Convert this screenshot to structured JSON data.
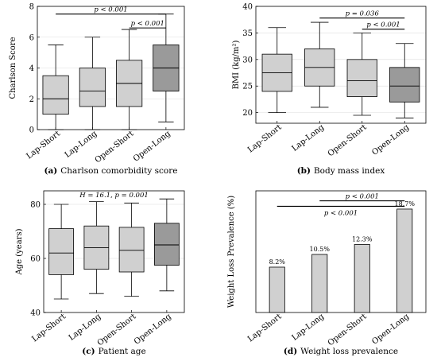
{
  "chart_data": [
    {
      "id": "a",
      "type": "box",
      "caption_letter": "(a)",
      "caption_text": "Charlson comorbidity score",
      "ylabel": "Charlson Score",
      "ylim": [
        0,
        8
      ],
      "yticks": [
        0,
        2,
        4,
        6,
        8
      ],
      "categories": [
        "Lap-Short",
        "Lap-Long",
        "Open-Short",
        "Open-Long"
      ],
      "boxes": [
        {
          "min": 0,
          "q1": 1,
          "median": 2,
          "q3": 3.5,
          "max": 5.5,
          "color": "#d0d0d0"
        },
        {
          "min": 0,
          "q1": 1.5,
          "median": 2.5,
          "q3": 4,
          "max": 6,
          "color": "#d0d0d0"
        },
        {
          "min": 0,
          "q1": 1.5,
          "median": 3,
          "q3": 4.5,
          "max": 6.5,
          "color": "#d0d0d0"
        },
        {
          "min": 0.5,
          "q1": 2.5,
          "median": 4,
          "q3": 5.5,
          "max": 7.5,
          "color": "#9a9a9a"
        }
      ],
      "brackets": [
        {
          "from": 0,
          "to": 3,
          "y": 7.5,
          "label": "p < 0.001"
        },
        {
          "from": 2,
          "to": 3,
          "y": 6.6,
          "label": "p < 0.001"
        }
      ]
    },
    {
      "id": "b",
      "type": "box",
      "caption_letter": "(b)",
      "caption_text": "Body mass index",
      "ylabel": "BMI (kg/m²)",
      "ylim": [
        18,
        40
      ],
      "yticks": [
        20,
        25,
        30,
        35,
        40
      ],
      "categories": [
        "Lap-Short",
        "Lap-Long",
        "Open-Short",
        "Open-Long"
      ],
      "boxes": [
        {
          "min": 20,
          "q1": 24,
          "median": 27.5,
          "q3": 31,
          "max": 36,
          "color": "#d0d0d0"
        },
        {
          "min": 21,
          "q1": 25,
          "median": 28.5,
          "q3": 32,
          "max": 37,
          "color": "#d0d0d0"
        },
        {
          "min": 19.5,
          "q1": 23,
          "median": 26,
          "q3": 30,
          "max": 35,
          "color": "#d0d0d0"
        },
        {
          "min": 19,
          "q1": 22,
          "median": 25,
          "q3": 28.5,
          "max": 33,
          "color": "#9a9a9a"
        }
      ],
      "brackets": [
        {
          "from": 1,
          "to": 3,
          "y": 37.8,
          "label": "p = 0.036"
        },
        {
          "from": 2,
          "to": 3,
          "y": 35.7,
          "label": "p < 0.001"
        }
      ]
    },
    {
      "id": "c",
      "type": "box",
      "caption_letter": "(c)",
      "caption_text": "Patient age",
      "ylabel": "Age (years)",
      "ylim": [
        40,
        85
      ],
      "yticks": [
        40,
        60,
        80
      ],
      "categories": [
        "Lap-Short",
        "Lap-Long",
        "Open-Short",
        "Open-Long"
      ],
      "boxes": [
        {
          "min": 45,
          "q1": 54,
          "median": 62,
          "q3": 71,
          "max": 80,
          "color": "#d0d0d0"
        },
        {
          "min": 47,
          "q1": 56,
          "median": 64,
          "q3": 72,
          "max": 81,
          "color": "#d0d0d0"
        },
        {
          "min": 46,
          "q1": 55,
          "median": 63,
          "q3": 71.5,
          "max": 80.5,
          "color": "#d0d0d0"
        },
        {
          "min": 48,
          "q1": 57.5,
          "median": 65,
          "q3": 73,
          "max": 82,
          "color": "#9a9a9a"
        }
      ],
      "annotation": "H = 16.1, p = 0.001"
    },
    {
      "id": "d",
      "type": "bar",
      "caption_letter": "(d)",
      "caption_text": "Weight loss prevalence",
      "ylabel": "Weight Loss Prevalence (%)",
      "ylim": [
        0,
        22
      ],
      "categories": [
        "Lap-Short",
        "Lap-Long",
        "Open-Short",
        "Open-Long"
      ],
      "values": [
        8.2,
        10.5,
        12.3,
        18.7
      ],
      "data_labels": [
        "8.2%",
        "10.5%",
        "12.3%",
        "18.7%"
      ],
      "bar_color": "#d0d0d0",
      "brackets": [
        {
          "from": 1,
          "to": 3,
          "y": 20.2,
          "label": "p < 0.001",
          "label_pos": "above"
        },
        {
          "from": 0,
          "to": 3,
          "y": 19.2,
          "label": "p < 0.001",
          "label_pos": "below"
        }
      ]
    }
  ]
}
